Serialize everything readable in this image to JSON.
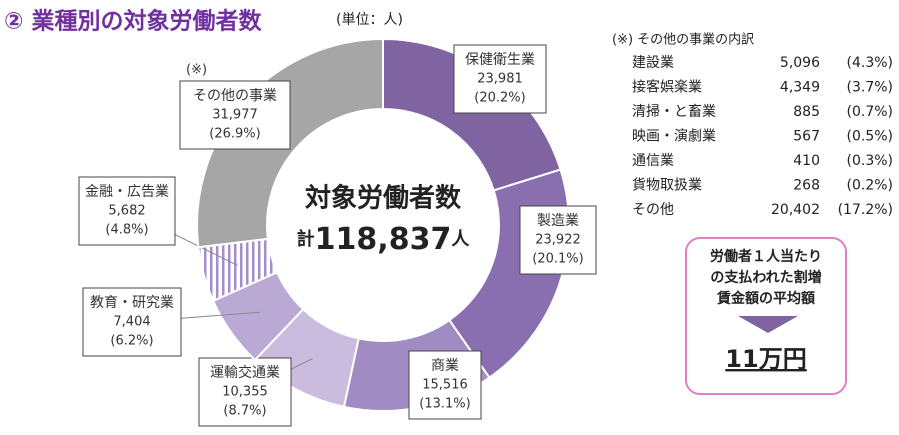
{
  "chart_data": {
    "type": "donut",
    "title": "② 業種別の対象労働者数",
    "unit": "(単位：人)",
    "center_title": "対象労働者数",
    "total_prefix": "計",
    "total": 118837,
    "total_label": "118,837",
    "total_suffix": "人",
    "note_marker": "(※)",
    "categories": [
      "保健衛生業",
      "製造業",
      "商業",
      "運輸交通業",
      "教育・研究業",
      "金融・広告業",
      "その他の事業"
    ],
    "values": [
      23981,
      23922,
      15516,
      10355,
      7404,
      5682,
      31977
    ],
    "value_labels": [
      "23,981",
      "23,922",
      "15,516",
      "10,355",
      "7,404",
      "5,682",
      "31,977"
    ],
    "percents": [
      20.2,
      20.1,
      13.1,
      8.7,
      6.2,
      4.8,
      26.9
    ],
    "percent_labels": [
      "(20.2%)",
      "(20.1%)",
      "(13.1%)",
      "(8.7%)",
      "(6.2%)",
      "(4.8%)",
      "(26.9%)"
    ],
    "colors": [
      "#8064a2",
      "#8a6fb0",
      "#a08bc2",
      "#c9bcdf",
      "#b9a9d4",
      "#d9cfea",
      "#a6a6a6"
    ]
  },
  "breakdown": {
    "title": "(※) その他の事業の内訳",
    "rows": [
      [
        "建設業",
        "5,096",
        "(4.3%)"
      ],
      [
        "接客娯楽業",
        "4,349",
        "(3.7%)"
      ],
      [
        "清掃・と畜業",
        "885",
        "(0.7%)"
      ],
      [
        "映画・演劇業",
        "567",
        "(0.5%)"
      ],
      [
        "通信業",
        "410",
        "(0.3%)"
      ],
      [
        "貨物取扱業",
        "268",
        "(0.2%)"
      ],
      [
        "その他",
        "20,402",
        "(17.2%)"
      ]
    ]
  },
  "callout": {
    "lines": [
      "労働者１人当たり",
      "の支払われた割増",
      "賃金額の平均額"
    ],
    "amount": "11万円"
  }
}
